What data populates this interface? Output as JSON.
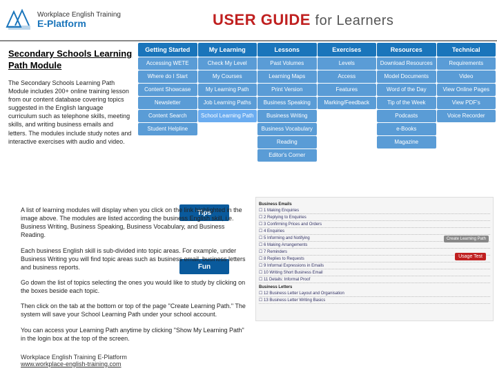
{
  "header": {
    "logo_line1": "Workplace English Training",
    "logo_brand": "E-Platform",
    "title_main": "USER GUIDE",
    "title_suffix": "for Learners"
  },
  "nav": {
    "columns": [
      {
        "header": "Getting Started",
        "items": [
          "Accessing WETE",
          "Where do I Start",
          "Content Showcase",
          "Newsletter",
          "Content Search",
          "Student Helpline"
        ]
      },
      {
        "header": "My Learning",
        "items": [
          "Check My Level",
          "My Courses",
          "My Learning Path",
          "Job Learning Paths",
          "School Learning Path"
        ]
      },
      {
        "header": "Lessons",
        "items": [
          "Past Volumes",
          "Learning Maps",
          "Print Version",
          "Business Speaking",
          "Business Writing",
          "Business Vocabulary",
          "Reading",
          "Editor's Corner"
        ]
      },
      {
        "header": "Exercises",
        "items": [
          "Levels",
          "Access",
          "Features",
          "Marking/Feedback"
        ]
      },
      {
        "header": "Resources",
        "items": [
          "Download Resources",
          "Model Documents",
          "Word of the Day",
          "Tip of the Week",
          "Podcasts",
          "e-Books",
          "Magazine"
        ]
      },
      {
        "header": "Technical",
        "items": [
          "Requirements",
          "Video",
          "View Online Pages",
          "View PDF's",
          "Voice Recorder"
        ]
      }
    ],
    "highlight": "School Learning Path"
  },
  "panel": {
    "title": "Secondary Schools Learning Path Module",
    "desc": "The Secondary Schools Learning Path Module includes 200+ online training lesson from our content database covering topics suggested in the English language curriculum such as telephone skills, meeting skills, and writing business emails and letters. The modules include study notes and interactive exercises with audio and video."
  },
  "body": [
    "A list of learning modules will display when you click on the link highlighted in the image above. The modules are listed according the business English skill, i.e. Business Writing, Business Speaking, Business Vocabulary, and Business Reading.",
    "Each business English skill is sub-divided into topic areas. For example, under Business Writing you will find topic areas such as business email, business letters and business reports.",
    "Go down the list of topics selecting the ones you would like to study by clicking on the boxes beside each topic.",
    "Then click on the tab at the bottom or top of the page \"Create Learning Path.\" The system will save your School Learning Path under your school account.",
    "You can access your Learning Path anytime by clicking \"Show My Learning Path\" in the login box at the top of the screen."
  ],
  "footer": {
    "line1": "Workplace English Training E-Platform",
    "link": "www.workplace-english-training.com"
  },
  "tips_label": "Tips",
  "fun_label": "Fun",
  "bg": {
    "btn": "Create Learning Path",
    "usage": "Usage Test",
    "head1": "Business Emails",
    "head2": "Business Letters",
    "lines": [
      "1  Making Enquiries",
      "2  Replying to Enquiries",
      "3  Confirming Prices and Orders",
      "4  Enquiries",
      "5  Informing and Notifying",
      "6  Making Arrangements",
      "7  Reminders",
      "8  Replies to Requests",
      "9  Informal Expressions in Emails",
      "10 Writing Short Business Email",
      "11 Details: Informal Proof",
      "12 Business Letter Layout and Organisation",
      "13 Business Letter Writing Basics"
    ]
  },
  "colors": {
    "nav_header_bg": "#1a75bb",
    "nav_item_bg": "#5a9cd6",
    "title_red": "#c02020"
  }
}
